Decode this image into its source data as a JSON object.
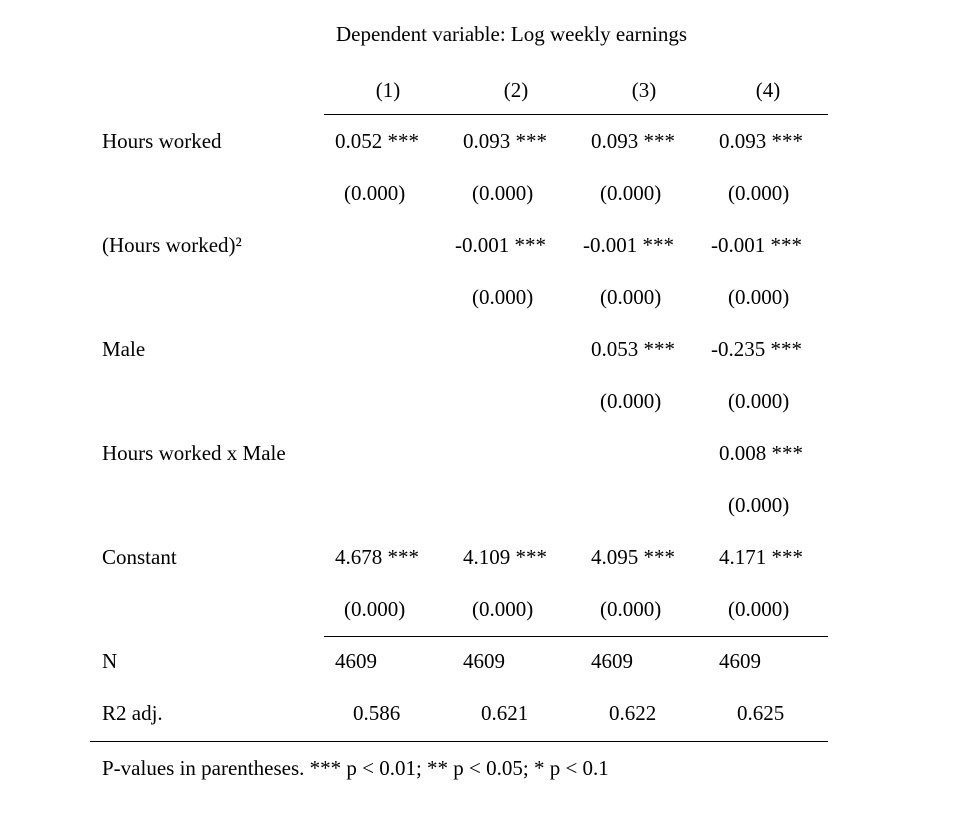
{
  "title": "Dependent variable: Log weekly earnings",
  "columns": [
    "(1)",
    "(2)",
    "(3)",
    "(4)"
  ],
  "rows": [
    {
      "label": "Hours worked",
      "coef": [
        "0.052 ***",
        "0.093 ***",
        "0.093 ***",
        "0.093 ***"
      ],
      "se": [
        "(0.000)",
        "(0.000)",
        "(0.000)",
        "(0.000)"
      ]
    },
    {
      "label": "(Hours worked)²",
      "coef": [
        "",
        "-0.001 ***",
        "-0.001 ***",
        "-0.001 ***"
      ],
      "se": [
        "",
        "(0.000)",
        "(0.000)",
        "(0.000)"
      ]
    },
    {
      "label": "Male",
      "coef": [
        "",
        "",
        "0.053 ***",
        "-0.235 ***"
      ],
      "se": [
        "",
        "",
        "(0.000)",
        "(0.000)"
      ]
    },
    {
      "label": "Hours worked x Male",
      "coef": [
        "",
        "",
        "",
        "0.008 ***"
      ],
      "se": [
        "",
        "",
        "",
        "(0.000)"
      ]
    },
    {
      "label": "Constant",
      "coef": [
        "4.678 ***",
        "4.109 ***",
        "4.095 ***",
        "4.171 ***"
      ],
      "se": [
        "(0.000)",
        "(0.000)",
        "(0.000)",
        "(0.000)"
      ]
    }
  ],
  "stats": [
    {
      "label": "N",
      "values": [
        "4609",
        "4609",
        "4609",
        "4609"
      ]
    },
    {
      "label": "R2 adj.",
      "values": [
        "0.586",
        "0.621",
        "0.622",
        "0.625"
      ]
    }
  ],
  "footnote": "P-values in parentheses. *** p < 0.01; ** p < 0.05; * p < 0.1"
}
